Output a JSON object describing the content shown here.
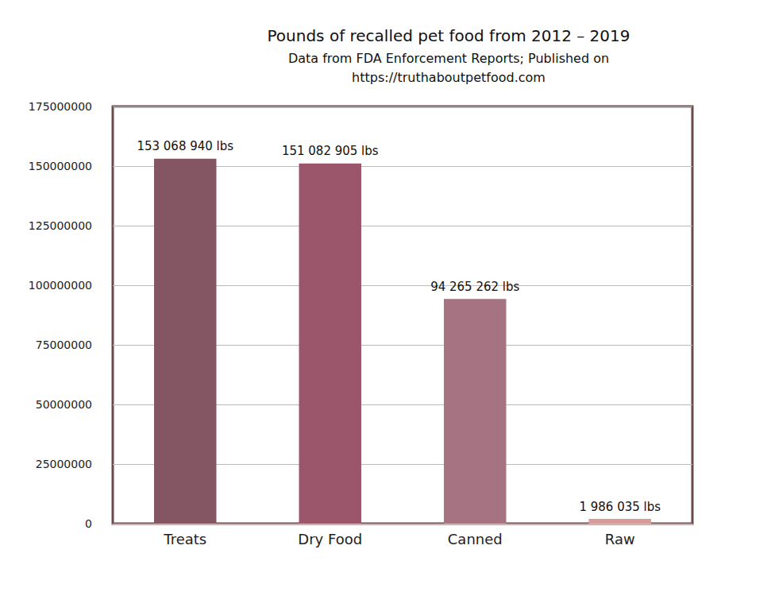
{
  "chart_data": {
    "type": "bar",
    "title": "Pounds of recalled pet food from 2012 – 2019",
    "subtitle": [
      "Data from FDA Enforcement Reports; Published on",
      "https://truthaboutpetfood.com"
    ],
    "categories": [
      "Treats",
      "Dry Food",
      "Canned",
      "Raw"
    ],
    "values": [
      153068940,
      151082905,
      94265262,
      1986035
    ],
    "value_labels": [
      "153 068 940 lbs",
      "151 082 905 lbs",
      "94 265 262 lbs",
      "1 986 035 lbs"
    ],
    "colors": [
      "#845563",
      "#9c566c",
      "#a57382",
      "#d89b97"
    ],
    "ylim": [
      0,
      175000000
    ],
    "yticks": [
      0,
      25000000,
      50000000,
      75000000,
      100000000,
      125000000,
      150000000,
      175000000
    ],
    "grid": true,
    "data_labels": true
  }
}
